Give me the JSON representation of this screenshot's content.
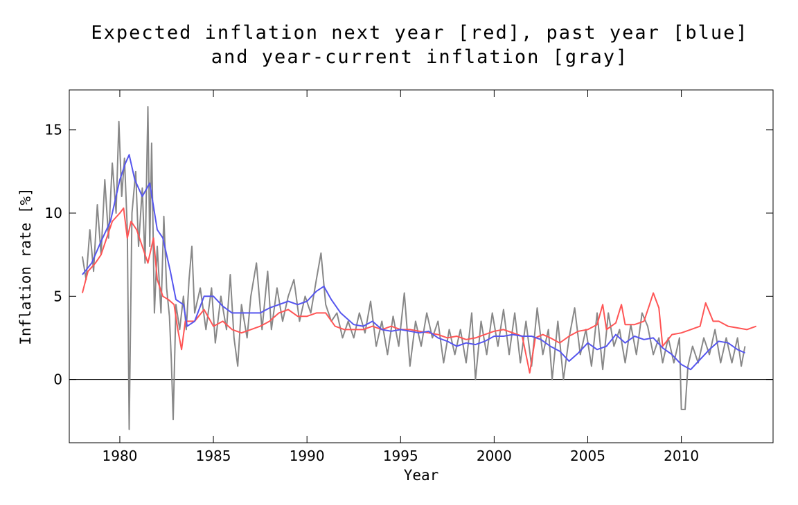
{
  "chart_data": {
    "type": "line",
    "title": [
      "Expected inflation next year [red], past year [blue]",
      "and year-current inflation [gray]"
    ],
    "xlabel": "Year",
    "ylabel": "Inflation rate [%]",
    "xlim": [
      1977.3,
      2014.9
    ],
    "ylim": [
      -3.8,
      17.4
    ],
    "xticks": [
      1980,
      1985,
      1990,
      1995,
      2000,
      2005,
      2010
    ],
    "yticks": [
      0,
      5,
      10,
      15
    ],
    "series": [
      {
        "color": "#888888",
        "x": [
          1978.0,
          1978.2,
          1978.4,
          1978.6,
          1978.8,
          1979.0,
          1979.2,
          1979.4,
          1979.6,
          1979.8,
          1979.95,
          1980.1,
          1980.25,
          1980.4,
          1980.5,
          1980.65,
          1980.85,
          1981.0,
          1981.2,
          1981.35,
          1981.5,
          1981.6,
          1981.7,
          1981.85,
          1982.0,
          1982.2,
          1982.35,
          1982.5,
          1982.65,
          1982.75,
          1982.85,
          1983.0,
          1983.2,
          1983.4,
          1983.55,
          1983.7,
          1983.85,
          1984.0,
          1984.3,
          1984.6,
          1984.9,
          1985.1,
          1985.4,
          1985.7,
          1985.9,
          1986.1,
          1986.3,
          1986.5,
          1986.8,
          1987.0,
          1987.3,
          1987.6,
          1987.9,
          1988.1,
          1988.4,
          1988.7,
          1989.0,
          1989.3,
          1989.6,
          1989.9,
          1990.2,
          1990.5,
          1990.75,
          1991.0,
          1991.3,
          1991.6,
          1991.9,
          1992.2,
          1992.5,
          1992.8,
          1993.1,
          1993.4,
          1993.7,
          1994.0,
          1994.3,
          1994.6,
          1994.9,
          1995.2,
          1995.5,
          1995.8,
          1996.1,
          1996.4,
          1996.7,
          1997.0,
          1997.3,
          1997.6,
          1997.9,
          1998.2,
          1998.5,
          1998.8,
          1999.0,
          1999.3,
          1999.6,
          1999.9,
          2000.2,
          2000.5,
          2000.8,
          2001.1,
          2001.4,
          2001.7,
          2002.0,
          2002.3,
          2002.6,
          2002.9,
          2003.1,
          2003.4,
          2003.7,
          2004.0,
          2004.3,
          2004.6,
          2004.9,
          2005.2,
          2005.5,
          2005.8,
          2006.1,
          2006.4,
          2006.7,
          2007.0,
          2007.3,
          2007.6,
          2007.9,
          2008.2,
          2008.5,
          2008.8,
          2009.0,
          2009.3,
          2009.6,
          2009.9,
          2010.0,
          2010.2,
          2010.35,
          2010.6,
          2010.9,
          2011.2,
          2011.5,
          2011.8,
          2012.1,
          2012.4,
          2012.7,
          2013.0,
          2013.2,
          2013.4
        ],
        "values": [
          7.4,
          6.0,
          9.0,
          6.5,
          10.5,
          7.5,
          12.0,
          8.5,
          13.0,
          10.0,
          15.5,
          11.0,
          13.3,
          9.0,
          -3.0,
          10.0,
          12.5,
          8.0,
          11.5,
          7.0,
          16.4,
          8.0,
          14.2,
          4.0,
          8.0,
          4.0,
          9.8,
          5.5,
          3.8,
          1.2,
          -2.4,
          4.5,
          3.0,
          5.0,
          3.0,
          6.0,
          8.0,
          4.0,
          5.5,
          3.0,
          5.5,
          2.2,
          5.0,
          3.0,
          6.3,
          2.5,
          0.8,
          4.5,
          2.5,
          5.0,
          7.0,
          3.0,
          6.5,
          3.0,
          5.5,
          3.5,
          5.0,
          6.0,
          3.5,
          5.0,
          4.0,
          6.0,
          7.6,
          4.5,
          3.5,
          4.0,
          2.5,
          3.5,
          2.5,
          4.0,
          2.8,
          4.7,
          2.0,
          3.5,
          1.5,
          3.8,
          2.0,
          5.2,
          0.8,
          3.5,
          2.0,
          4.0,
          2.5,
          3.5,
          1.0,
          3.0,
          1.5,
          3.0,
          1.0,
          4.0,
          0.0,
          3.5,
          1.5,
          4.0,
          2.0,
          4.2,
          1.5,
          4.0,
          1.0,
          3.5,
          0.8,
          4.3,
          1.5,
          3.0,
          0.0,
          3.5,
          0.0,
          2.5,
          4.3,
          1.5,
          3.0,
          0.8,
          4.0,
          0.6,
          4.0,
          2.0,
          3.0,
          1.0,
          3.3,
          1.5,
          4.0,
          3.2,
          1.5,
          2.5,
          1.0,
          2.5,
          1.0,
          2.5,
          -1.8,
          -1.8,
          0.8,
          2.0,
          1.0,
          2.5,
          1.5,
          3.0,
          1.0,
          2.5,
          1.0,
          2.5,
          0.8,
          2.0
        ]
      },
      {
        "color": "#ff5555",
        "x": [
          1978.0,
          1978.3,
          1978.7,
          1979.0,
          1979.3,
          1979.6,
          1980.0,
          1980.2,
          1980.4,
          1980.6,
          1980.9,
          1981.2,
          1981.5,
          1981.8,
          1982.0,
          1982.3,
          1982.6,
          1982.9,
          1983.1,
          1983.3,
          1983.5,
          1984.0,
          1984.5,
          1985.0,
          1985.5,
          1986.0,
          1986.5,
          1987.0,
          1987.5,
          1988.0,
          1988.5,
          1989.0,
          1989.5,
          1990.0,
          1990.5,
          1991.0,
          1991.5,
          1992.0,
          1992.5,
          1993.0,
          1993.5,
          1994.0,
          1994.5,
          1995.0,
          1995.5,
          1996.0,
          1996.5,
          1997.0,
          1997.5,
          1998.0,
          1998.5,
          1999.0,
          1999.5,
          2000.0,
          2000.5,
          2001.0,
          2001.5,
          2001.9,
          2002.2,
          2002.6,
          2003.0,
          2003.5,
          2004.0,
          2004.5,
          2005.0,
          2005.5,
          2005.8,
          2006.0,
          2006.5,
          2006.8,
          2007.0,
          2007.5,
          2008.0,
          2008.3,
          2008.5,
          2008.8,
          2009.0,
          2009.5,
          2010.0,
          2010.5,
          2011.0,
          2011.3,
          2011.7,
          2012.0,
          2012.5,
          2013.0,
          2013.5,
          2014.0
        ],
        "values": [
          5.2,
          6.5,
          7.0,
          7.5,
          8.5,
          9.5,
          10.0,
          10.3,
          8.5,
          9.5,
          9.0,
          8.0,
          7.0,
          8.5,
          6.0,
          5.0,
          4.8,
          4.5,
          3.0,
          1.8,
          3.5,
          3.5,
          4.2,
          3.2,
          3.5,
          3.0,
          2.8,
          3.0,
          3.2,
          3.5,
          4.0,
          4.2,
          3.8,
          3.8,
          4.0,
          4.0,
          3.2,
          3.0,
          3.0,
          3.0,
          3.2,
          3.0,
          3.2,
          3.0,
          3.0,
          2.9,
          2.8,
          2.7,
          2.5,
          2.6,
          2.4,
          2.5,
          2.7,
          2.9,
          3.0,
          2.8,
          2.6,
          0.4,
          2.5,
          2.7,
          2.5,
          2.2,
          2.6,
          2.9,
          3.0,
          3.3,
          4.5,
          3.0,
          3.4,
          4.5,
          3.3,
          3.3,
          3.5,
          4.5,
          5.2,
          4.3,
          2.0,
          2.7,
          2.8,
          3.0,
          3.2,
          4.6,
          3.5,
          3.5,
          3.2,
          3.1,
          3.0,
          3.2
        ]
      },
      {
        "color": "#5555ee",
        "x": [
          1978.0,
          1978.5,
          1979.0,
          1979.5,
          1980.0,
          1980.3,
          1980.5,
          1980.8,
          1981.2,
          1981.6,
          1982.0,
          1982.3,
          1982.7,
          1983.0,
          1983.4,
          1983.6,
          1984.0,
          1984.5,
          1985.0,
          1985.5,
          1986.0,
          1986.5,
          1987.0,
          1987.5,
          1988.0,
          1988.5,
          1989.0,
          1989.5,
          1990.0,
          1990.5,
          1990.9,
          1991.3,
          1991.8,
          1992.5,
          1993.0,
          1993.5,
          1994.0,
          1994.5,
          1995.0,
          1995.5,
          1996.0,
          1996.5,
          1997.0,
          1997.5,
          1998.0,
          1998.5,
          1999.0,
          1999.5,
          2000.0,
          2000.5,
          2001.0,
          2001.5,
          2002.0,
          2002.5,
          2003.0,
          2003.5,
          2004.0,
          2004.5,
          2005.0,
          2005.5,
          2006.0,
          2006.5,
          2007.0,
          2007.5,
          2008.0,
          2008.5,
          2009.0,
          2009.5,
          2010.0,
          2010.5,
          2011.0,
          2011.5,
          2012.0,
          2012.5,
          2013.0,
          2013.4
        ],
        "values": [
          6.3,
          7.0,
          8.3,
          9.5,
          12.0,
          13.0,
          13.5,
          12.0,
          11.0,
          11.8,
          9.0,
          8.5,
          6.5,
          4.8,
          4.5,
          3.2,
          3.5,
          5.0,
          5.0,
          4.4,
          4.0,
          4.0,
          4.0,
          4.0,
          4.3,
          4.5,
          4.7,
          4.5,
          4.7,
          5.3,
          5.6,
          4.8,
          4.0,
          3.3,
          3.2,
          3.5,
          3.0,
          2.9,
          3.0,
          2.9,
          2.8,
          2.9,
          2.5,
          2.3,
          2.0,
          2.2,
          2.1,
          2.3,
          2.6,
          2.6,
          2.7,
          2.6,
          2.6,
          2.4,
          2.0,
          1.7,
          1.1,
          1.6,
          2.2,
          1.8,
          2.0,
          2.7,
          2.2,
          2.6,
          2.4,
          2.5,
          1.9,
          1.5,
          0.9,
          0.6,
          1.2,
          1.8,
          2.3,
          2.2,
          1.8,
          1.6
        ]
      }
    ]
  }
}
